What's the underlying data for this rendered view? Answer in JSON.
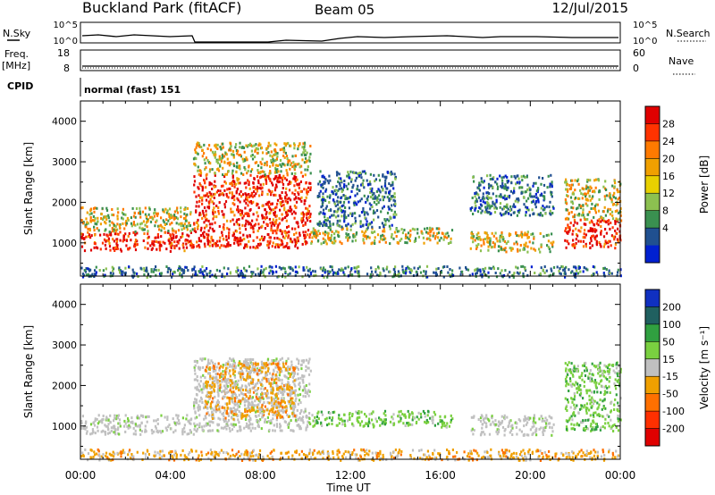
{
  "header": {
    "station": "Buckland Park (fitACF)",
    "beam": "Beam 05",
    "date": "12/Jul/2015"
  },
  "status_panels": {
    "nsky_label": "N.Sky",
    "nsearch_label": "N.Search",
    "noise_ticks_left": [
      "10^5",
      "10^0"
    ],
    "noise_ticks_right": [
      "10^5",
      "10^0"
    ],
    "freq_label": "Freq.",
    "freq_unit": "[MHz]",
    "freq_ticks": [
      "18",
      "8"
    ],
    "nave_label": "Nave",
    "nave_ticks": [
      "60",
      "0"
    ],
    "cpid_label": "CPID",
    "cpid_text": "normal (fast) 151"
  },
  "chart_data": [
    {
      "type": "heatmap",
      "name": "power",
      "ylabel": "Slant Range [km]",
      "yticks": [
        1000,
        2000,
        3000,
        4000
      ],
      "ylim": [
        180,
        4500
      ],
      "xlim": [
        0,
        24
      ],
      "colorbar": {
        "label": "Power [dB]",
        "ticks": [
          "28",
          "24",
          "20",
          "16",
          "12",
          "8",
          "4"
        ],
        "colors": [
          "#e00000",
          "#ff3300",
          "#ff7a00",
          "#f0a000",
          "#e8d000",
          "#8cc050",
          "#3a9050",
          "#205090",
          "#0020d0"
        ]
      },
      "regions": [
        {
          "x": [
            0.0,
            5.0
          ],
          "y": [
            820,
            1300
          ],
          "level": "high"
        },
        {
          "x": [
            0.0,
            5.0
          ],
          "y": [
            1300,
            1900
          ],
          "level": "medium"
        },
        {
          "x": [
            5.0,
            10.2
          ],
          "y": [
            900,
            2700
          ],
          "level": "high"
        },
        {
          "x": [
            5.0,
            10.2
          ],
          "y": [
            2700,
            3500
          ],
          "level": "medium"
        },
        {
          "x": [
            10.2,
            16.5
          ],
          "y": [
            1000,
            1400
          ],
          "level": "medium"
        },
        {
          "x": [
            10.5,
            14.0
          ],
          "y": [
            1400,
            2800
          ],
          "level": "low"
        },
        {
          "x": [
            17.3,
            21.0
          ],
          "y": [
            800,
            1300
          ],
          "level": "medium"
        },
        {
          "x": [
            17.3,
            21.0
          ],
          "y": [
            1700,
            2700
          ],
          "level": "low"
        },
        {
          "x": [
            21.5,
            24.0
          ],
          "y": [
            900,
            1600
          ],
          "level": "high"
        },
        {
          "x": [
            21.5,
            24.0
          ],
          "y": [
            1600,
            2600
          ],
          "level": "medium"
        },
        {
          "x": [
            0.0,
            24.0
          ],
          "y": [
            180,
            450
          ],
          "level": "low"
        }
      ]
    },
    {
      "type": "heatmap",
      "name": "velocity",
      "ylabel": "Slant Range [km]",
      "yticks": [
        1000,
        2000,
        3000,
        4000
      ],
      "ylim": [
        180,
        4500
      ],
      "xlim": [
        0,
        24
      ],
      "colorbar": {
        "label": "Velocity [m s⁻¹]",
        "ticks": [
          "200",
          "100",
          "50",
          "15",
          "-15",
          "-50",
          "-100",
          "-200"
        ],
        "colors": [
          "#1030c0",
          "#206060",
          "#30a040",
          "#7ad040",
          "#c0c0c0",
          "#f0a000",
          "#ff7000",
          "#ff3000",
          "#e00000"
        ]
      },
      "regions": [
        {
          "x": [
            0.0,
            5.0
          ],
          "y": [
            820,
            1300
          ],
          "level": "ground"
        },
        {
          "x": [
            5.0,
            10.2
          ],
          "y": [
            900,
            2700
          ],
          "level": "ground"
        },
        {
          "x": [
            5.5,
            9.5
          ],
          "y": [
            1200,
            2600
          ],
          "level": "negative"
        },
        {
          "x": [
            10.2,
            16.5
          ],
          "y": [
            1000,
            1400
          ],
          "level": "positive"
        },
        {
          "x": [
            17.3,
            21.0
          ],
          "y": [
            800,
            1300
          ],
          "level": "ground"
        },
        {
          "x": [
            21.5,
            24.0
          ],
          "y": [
            900,
            2600
          ],
          "level": "positive"
        },
        {
          "x": [
            0.0,
            24.0
          ],
          "y": [
            180,
            450
          ],
          "level": "negative"
        }
      ]
    }
  ],
  "x_axis": {
    "ticks": [
      "00:00",
      "04:00",
      "08:00",
      "12:00",
      "16:00",
      "20:00",
      "00:00"
    ],
    "label": "Time UT"
  }
}
